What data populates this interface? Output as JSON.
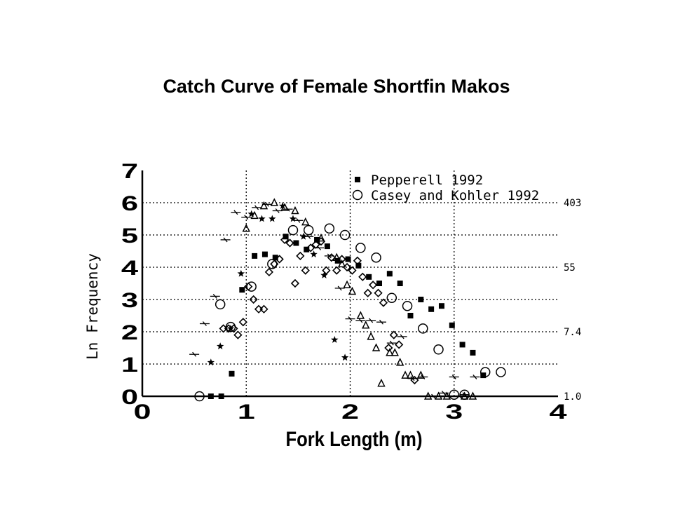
{
  "chart_data": {
    "type": "scatter",
    "title": "Catch Curve of Female Shortfin Makos",
    "xlabel": "Fork Length (m)",
    "ylabel": "Ln Frequency",
    "xlim": [
      0,
      4
    ],
    "ylim": [
      0,
      7
    ],
    "x_ticks": [
      "0",
      "1",
      "2",
      "3",
      "4"
    ],
    "y_ticks": [
      "0",
      "1",
      "2",
      "3",
      "4",
      "5",
      "6",
      "7"
    ],
    "right_axis_labels": [
      {
        "y": 0,
        "label": "1.0"
      },
      {
        "y": 2,
        "label": "7.4"
      },
      {
        "y": 4,
        "label": "55"
      },
      {
        "y": 6,
        "label": "403"
      }
    ],
    "grid": true,
    "legend_position": "top-right",
    "legend": [
      "Pepperell 1992",
      "Casey and Kohler 1992"
    ],
    "series": [
      {
        "name": "Pepperell 1992",
        "marker": "filled-square",
        "points": [
          [
            0.66,
            0
          ],
          [
            0.76,
            0
          ],
          [
            0.86,
            0.7
          ],
          [
            0.96,
            3.3
          ],
          [
            1.08,
            4.35
          ],
          [
            1.18,
            4.4
          ],
          [
            1.28,
            4.3
          ],
          [
            1.38,
            4.95
          ],
          [
            1.48,
            4.75
          ],
          [
            1.58,
            4.55
          ],
          [
            1.68,
            4.85
          ],
          [
            1.78,
            4.65
          ],
          [
            1.88,
            4.2
          ],
          [
            1.98,
            4.25
          ],
          [
            2.08,
            4.05
          ],
          [
            2.18,
            3.7
          ],
          [
            2.28,
            3.5
          ],
          [
            2.38,
            3.8
          ],
          [
            2.48,
            3.5
          ],
          [
            2.58,
            2.5
          ],
          [
            2.68,
            3
          ],
          [
            2.78,
            2.7
          ],
          [
            2.88,
            2.8
          ],
          [
            2.98,
            2.2
          ],
          [
            3.08,
            1.6
          ],
          [
            3.18,
            1.35
          ],
          [
            3.28,
            0.65
          ]
        ]
      },
      {
        "name": "Casey and Kohler 1992",
        "marker": "open-circle",
        "points": [
          [
            0.55,
            0
          ],
          [
            0.75,
            2.85
          ],
          [
            0.85,
            2.15
          ],
          [
            1.05,
            3.4
          ],
          [
            1.25,
            4.1
          ],
          [
            1.45,
            5.15
          ],
          [
            1.6,
            5.15
          ],
          [
            1.8,
            5.2
          ],
          [
            1.95,
            5
          ],
          [
            2.1,
            4.6
          ],
          [
            2.25,
            4.3
          ],
          [
            2.4,
            3.05
          ],
          [
            2.55,
            2.8
          ],
          [
            2.7,
            2.1
          ],
          [
            2.85,
            1.45
          ],
          [
            3.0,
            0.05
          ],
          [
            3.1,
            0.05
          ],
          [
            3.3,
            0.75
          ],
          [
            3.45,
            0.75
          ]
        ]
      },
      {
        "marker": "open-diamond",
        "points": [
          [
            0.78,
            2.1
          ],
          [
            0.83,
            2.1
          ],
          [
            0.88,
            2.1
          ],
          [
            0.92,
            1.9
          ],
          [
            0.97,
            2.3
          ],
          [
            1.02,
            3.4
          ],
          [
            1.07,
            3.0
          ],
          [
            1.12,
            2.7
          ],
          [
            1.17,
            2.7
          ],
          [
            1.22,
            3.85
          ],
          [
            1.27,
            4.1
          ],
          [
            1.32,
            4.25
          ],
          [
            1.37,
            4.85
          ],
          [
            1.42,
            4.75
          ],
          [
            1.47,
            3.5
          ],
          [
            1.52,
            4.35
          ],
          [
            1.57,
            3.9
          ],
          [
            1.62,
            4.6
          ],
          [
            1.67,
            4.7
          ],
          [
            1.72,
            4.8
          ],
          [
            1.77,
            3.9
          ],
          [
            1.82,
            4.3
          ],
          [
            1.87,
            3.9
          ],
          [
            1.92,
            4.25
          ],
          [
            1.97,
            4.0
          ],
          [
            2.02,
            3.9
          ],
          [
            2.07,
            4.2
          ],
          [
            2.12,
            3.7
          ],
          [
            2.17,
            3.2
          ],
          [
            2.22,
            3.45
          ],
          [
            2.27,
            3.2
          ],
          [
            2.32,
            2.9
          ],
          [
            2.37,
            1.5
          ],
          [
            2.42,
            1.9
          ],
          [
            2.47,
            1.6
          ],
          [
            2.62,
            0.5
          ]
        ]
      },
      {
        "marker": "open-triangle",
        "points": [
          [
            1.0,
            5.2
          ],
          [
            1.08,
            5.6
          ],
          [
            1.17,
            5.9
          ],
          [
            1.27,
            6.0
          ],
          [
            1.37,
            5.85
          ],
          [
            1.47,
            5.75
          ],
          [
            1.57,
            5.4
          ],
          [
            1.72,
            4.9
          ],
          [
            1.87,
            4.3
          ],
          [
            1.92,
            4.1
          ],
          [
            1.97,
            3.45
          ],
          [
            2.02,
            3.25
          ],
          [
            2.1,
            2.5
          ],
          [
            2.15,
            2.2
          ],
          [
            2.2,
            1.85
          ],
          [
            2.25,
            1.5
          ],
          [
            2.3,
            0.4
          ],
          [
            2.38,
            1.35
          ],
          [
            2.43,
            1.35
          ],
          [
            2.48,
            1.05
          ],
          [
            2.53,
            0.65
          ],
          [
            2.58,
            0.65
          ],
          [
            2.68,
            0.65
          ],
          [
            2.75,
            0
          ],
          [
            2.85,
            0
          ],
          [
            2.93,
            0
          ],
          [
            3.1,
            0
          ],
          [
            3.18,
            0
          ]
        ]
      },
      {
        "marker": "star",
        "points": [
          [
            0.66,
            1.05
          ],
          [
            0.75,
            1.55
          ],
          [
            0.85,
            2.1
          ],
          [
            0.95,
            3.8
          ],
          [
            1.05,
            5.65
          ],
          [
            1.15,
            5.5
          ],
          [
            1.25,
            5.5
          ],
          [
            1.35,
            5.9
          ],
          [
            1.45,
            5.5
          ],
          [
            1.55,
            4.95
          ],
          [
            1.65,
            4.4
          ],
          [
            1.75,
            3.75
          ],
          [
            1.85,
            1.75
          ],
          [
            1.95,
            1.2
          ]
        ]
      },
      {
        "marker": "cross",
        "points": [
          [
            0.5,
            1.3
          ],
          [
            0.6,
            2.25
          ],
          [
            0.7,
            3.1
          ],
          [
            0.8,
            4.85
          ],
          [
            0.9,
            5.7
          ],
          [
            1.0,
            5.55
          ],
          [
            1.1,
            5.85
          ],
          [
            1.2,
            5.95
          ],
          [
            1.3,
            5.75
          ],
          [
            1.4,
            5.8
          ],
          [
            1.5,
            5.45
          ],
          [
            1.6,
            4.95
          ],
          [
            1.7,
            4.6
          ],
          [
            1.8,
            4.35
          ],
          [
            1.9,
            3.35
          ],
          [
            2.0,
            2.4
          ],
          [
            2.1,
            2.35
          ],
          [
            2.2,
            2.35
          ],
          [
            2.3,
            2.3
          ],
          [
            2.4,
            1.65
          ],
          [
            2.5,
            1.85
          ],
          [
            2.6,
            0.55
          ],
          [
            2.7,
            0.6
          ],
          [
            2.8,
            0
          ],
          [
            2.9,
            0.1
          ],
          [
            3.0,
            0.6
          ],
          [
            3.1,
            0.05
          ],
          [
            3.2,
            0.6
          ]
        ]
      }
    ]
  }
}
